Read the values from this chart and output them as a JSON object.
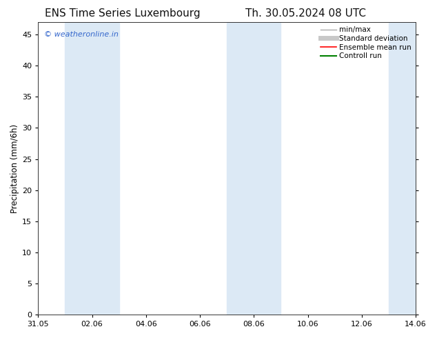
{
  "title_left": "ENS Time Series Luxembourg",
  "title_right": "Th. 30.05.2024 08 UTC",
  "ylabel": "Precipitation (mm/6h)",
  "xlabel": "",
  "ylim": [
    0,
    47
  ],
  "yticks": [
    0,
    5,
    10,
    15,
    20,
    25,
    30,
    35,
    40,
    45
  ],
  "xtick_labels": [
    "31.05",
    "02.06",
    "04.06",
    "06.06",
    "08.06",
    "10.06",
    "12.06",
    "14.06"
  ],
  "xtick_positions": [
    0,
    2,
    4,
    6,
    8,
    10,
    12,
    14
  ],
  "xlim": [
    0,
    14
  ],
  "background_color": "#ffffff",
  "shaded_regions": [
    {
      "xmin": 1,
      "xmax": 3,
      "color": "#dce9f5"
    },
    {
      "xmin": 7,
      "xmax": 9,
      "color": "#dce9f5"
    },
    {
      "xmin": 13,
      "xmax": 15,
      "color": "#dce9f5"
    }
  ],
  "legend_entries": [
    {
      "label": "min/max",
      "color": "#aaaaaa",
      "lw": 1
    },
    {
      "label": "Standard deviation",
      "color": "#c8c8c8",
      "lw": 5
    },
    {
      "label": "Ensemble mean run",
      "color": "#ff0000",
      "lw": 1.2
    },
    {
      "label": "Controll run",
      "color": "#008000",
      "lw": 1.5
    }
  ],
  "watermark_text": "© weatheronline.in",
  "watermark_color": "#3366cc",
  "title_fontsize": 11,
  "axis_fontsize": 8.5,
  "tick_fontsize": 8,
  "legend_fontsize": 7.5
}
